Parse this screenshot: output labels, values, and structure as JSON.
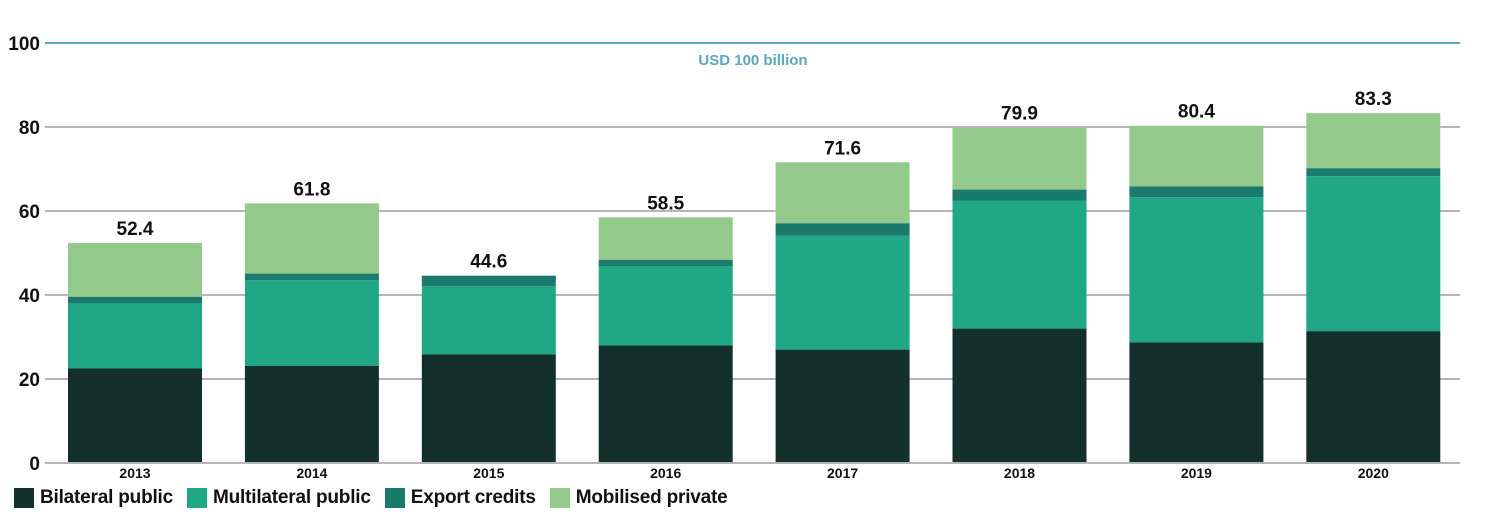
{
  "chart_data": {
    "type": "bar",
    "stacked": true,
    "title": "",
    "xlabel": "",
    "ylabel": "",
    "ylim": [
      0,
      100
    ],
    "yticks": [
      0,
      20,
      40,
      60,
      80,
      100
    ],
    "grid": true,
    "categories": [
      "2013",
      "2014",
      "2015",
      "2016",
      "2017",
      "2018",
      "2019",
      "2020"
    ],
    "series": [
      {
        "name": "Bilateral public",
        "color": "#14302a",
        "values": [
          22.5,
          23.1,
          25.9,
          28.0,
          27.0,
          32.0,
          28.7,
          31.4
        ]
      },
      {
        "name": "Multilateral public",
        "color": "#1fa786",
        "values": [
          15.5,
          20.4,
          16.2,
          18.9,
          27.1,
          30.5,
          34.6,
          36.9
        ]
      },
      {
        "name": "Export credits",
        "color": "#1a7a6b",
        "values": [
          1.6,
          1.6,
          2.5,
          1.5,
          3.0,
          2.6,
          2.6,
          1.9
        ]
      },
      {
        "name": "Mobilised private",
        "color": "#93c98b",
        "values": [
          12.8,
          16.7,
          0,
          10.1,
          14.5,
          14.7,
          14.4,
          13.1
        ]
      }
    ],
    "totals": [
      "52.4",
      "61.8",
      "44.6",
      "58.5",
      "71.6",
      "79.9",
      "80.4",
      "83.3"
    ],
    "target_line": {
      "value": 100,
      "label": "USD 100 billion",
      "color": "#5ba7c0"
    },
    "legend_position": "bottom-left"
  }
}
